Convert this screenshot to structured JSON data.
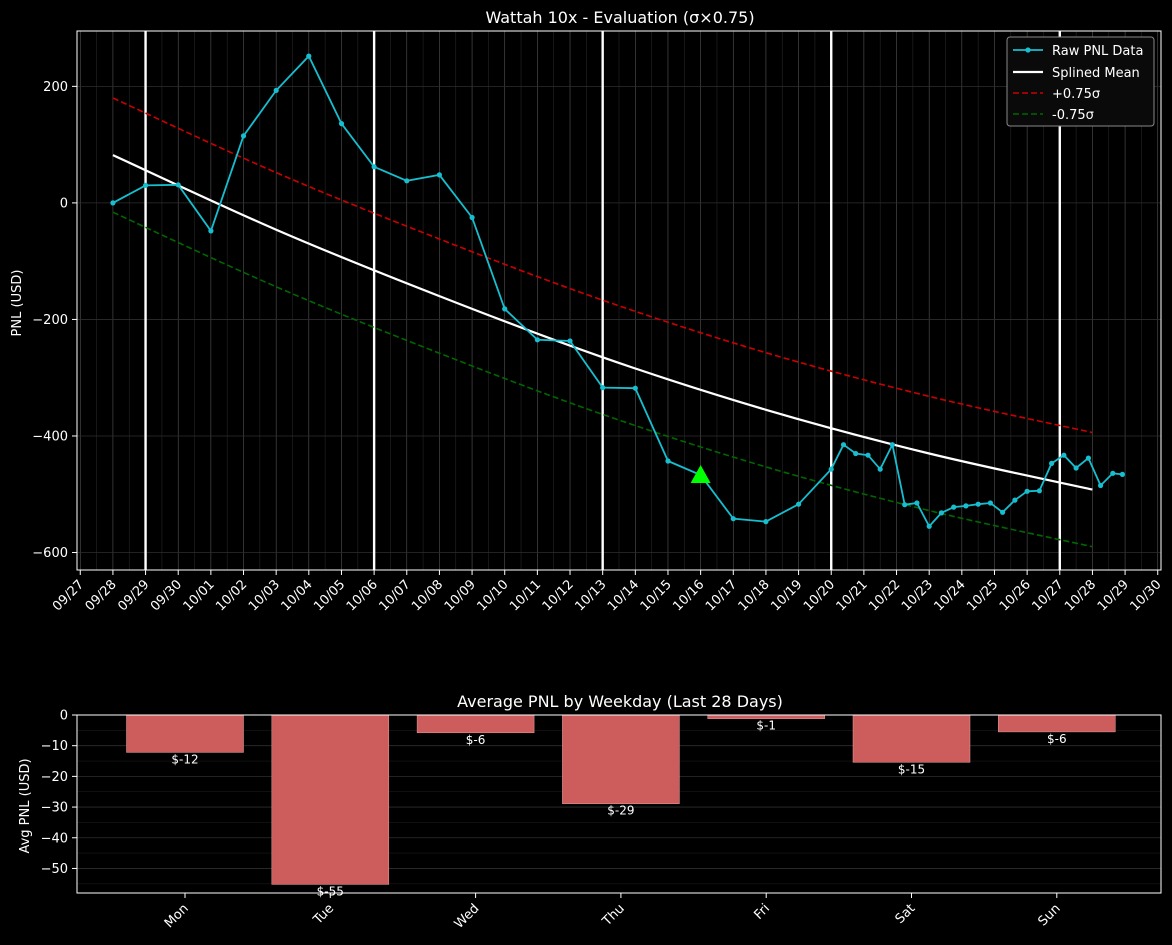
{
  "colors": {
    "background": "#000000",
    "raw": "#17becf",
    "mean": "#ffffff",
    "upper": "#cc0000",
    "lower": "#006600",
    "marker": "#00ff00",
    "bars": "#cd5c5c",
    "grid": "#2a2a2a"
  },
  "chart_data": [
    {
      "type": "line",
      "title": "Wattah 10x - Evaluation (σ×0.75)",
      "xlabel": "",
      "ylabel": "PNL (USD)",
      "xlim": [
        "2024-09-27",
        "2024-10-30"
      ],
      "ylim": [
        -630,
        295
      ],
      "x_tick_labels": [
        "09/27",
        "09/28",
        "09/29",
        "09/30",
        "10/01",
        "10/02",
        "10/03",
        "10/04",
        "10/05",
        "10/06",
        "10/07",
        "10/08",
        "10/09",
        "10/10",
        "10/11",
        "10/12",
        "10/13",
        "10/14",
        "10/15",
        "10/16",
        "10/17",
        "10/18",
        "10/19",
        "10/20",
        "10/21",
        "10/22",
        "10/23",
        "10/24",
        "10/25",
        "10/26",
        "10/27",
        "10/28",
        "10/29",
        "10/30"
      ],
      "y_tick_labels": [
        "200",
        "0",
        "−200",
        "−400",
        "−600"
      ],
      "y_ticks": [
        200,
        0,
        -200,
        -400,
        -600
      ],
      "week_lines": [
        "2024-09-29",
        "2024-10-06",
        "2024-10-13",
        "2024-10-20",
        "2024-10-27"
      ],
      "grid": true,
      "legend_position": "top-right",
      "legend": {
        "raw": "Raw PNL Data",
        "mean": "Splined Mean",
        "upper": "+0.75σ",
        "lower": "-0.75σ"
      },
      "series": [
        {
          "name": "Raw PNL Data",
          "style": "line-markers",
          "points": [
            [
              "2024-09-28T00:00",
              0
            ],
            [
              "2024-09-29T00:00",
              30
            ],
            [
              "2024-09-30T00:00",
              31
            ],
            [
              "2024-10-01T00:00",
              -48
            ],
            [
              "2024-10-02T00:00",
              115
            ],
            [
              "2024-10-03T00:00",
              193
            ],
            [
              "2024-10-04T00:00",
              252
            ],
            [
              "2024-10-05T00:00",
              136
            ],
            [
              "2024-10-06T00:00",
              62
            ],
            [
              "2024-10-07T00:00",
              38
            ],
            [
              "2024-10-08T00:00",
              48
            ],
            [
              "2024-10-09T00:00",
              -25
            ],
            [
              "2024-10-10T00:00",
              -182
            ],
            [
              "2024-10-11T00:00",
              -235
            ],
            [
              "2024-10-12T00:00",
              -237
            ],
            [
              "2024-10-13T00:00",
              -317
            ],
            [
              "2024-10-14T00:00",
              -318
            ],
            [
              "2024-10-15T00:00",
              -443
            ],
            [
              "2024-10-16T00:00",
              -467
            ],
            [
              "2024-10-17T00:00",
              -542
            ],
            [
              "2024-10-18T00:00",
              -547
            ],
            [
              "2024-10-19T00:00",
              -517
            ],
            [
              "2024-10-20T00:00",
              -457
            ],
            [
              "2024-10-20T09:00",
              -415
            ],
            [
              "2024-10-20T18:00",
              -430
            ],
            [
              "2024-10-21T03:00",
              -433
            ],
            [
              "2024-10-21T12:00",
              -457
            ],
            [
              "2024-10-21T21:00",
              -415
            ],
            [
              "2024-10-22T06:00",
              -518
            ],
            [
              "2024-10-22T15:00",
              -515
            ],
            [
              "2024-10-23T00:00",
              -555
            ],
            [
              "2024-10-23T09:00",
              -532
            ],
            [
              "2024-10-23T18:00",
              -522
            ],
            [
              "2024-10-24T03:00",
              -520
            ],
            [
              "2024-10-24T12:00",
              -517
            ],
            [
              "2024-10-24T21:00",
              -515
            ],
            [
              "2024-10-25T06:00",
              -531
            ],
            [
              "2024-10-25T15:00",
              -510
            ],
            [
              "2024-10-26T00:00",
              -495
            ],
            [
              "2024-10-26T09:00",
              -494
            ],
            [
              "2024-10-26T18:00",
              -447
            ],
            [
              "2024-10-27T03:00",
              -433
            ],
            [
              "2024-10-27T12:00",
              -455
            ],
            [
              "2024-10-27T21:00",
              -438
            ],
            [
              "2024-10-28T06:00",
              -485
            ],
            [
              "2024-10-28T15:00",
              -464
            ],
            [
              "2024-10-28T22:00",
              -466
            ]
          ]
        },
        {
          "name": "Splined Mean",
          "style": "solid",
          "points": [
            [
              "2024-09-28",
              82
            ],
            [
              "2024-10-03",
              -46
            ],
            [
              "2024-10-08",
              -160
            ],
            [
              "2024-10-13",
              -265
            ],
            [
              "2024-10-18",
              -355
            ],
            [
              "2024-10-23",
              -430
            ],
            [
              "2024-10-28",
              -492
            ]
          ]
        },
        {
          "name": "+0.75σ",
          "style": "dashed",
          "points": [
            [
              "2024-09-28",
              180
            ],
            [
              "2024-10-03",
              52
            ],
            [
              "2024-10-08",
              -62
            ],
            [
              "2024-10-13",
              -167
            ],
            [
              "2024-10-18",
              -257
            ],
            [
              "2024-10-23",
              -332
            ],
            [
              "2024-10-28",
              -394
            ]
          ]
        },
        {
          "name": "-0.75σ",
          "style": "dashed",
          "points": [
            [
              "2024-09-28",
              -16
            ],
            [
              "2024-10-03",
              -144
            ],
            [
              "2024-10-08",
              -258
            ],
            [
              "2024-10-13",
              -363
            ],
            [
              "2024-10-18",
              -453
            ],
            [
              "2024-10-23",
              -528
            ],
            [
              "2024-10-28",
              -590
            ]
          ]
        }
      ],
      "marker": {
        "shape": "triangle",
        "x": "2024-10-16T00:00",
        "y": -467
      }
    },
    {
      "type": "bar",
      "title": "Average PNL by Weekday (Last 28 Days)",
      "xlabel": "",
      "ylabel": "Avg PNL (USD)",
      "ylim": [
        -58,
        0
      ],
      "categories": [
        "Mon",
        "Tue",
        "Wed",
        "Thu",
        "Fri",
        "Sat",
        "Sun"
      ],
      "values": [
        -12.2,
        -55.2,
        -5.8,
        -28.9,
        -1.2,
        -15.4,
        -5.5
      ],
      "data_labels": [
        "$-12",
        "$-55",
        "$-6",
        "$-29",
        "$-1",
        "$-15",
        "$-6"
      ],
      "y_ticks": [
        0,
        -10,
        -20,
        -30,
        -40,
        -50
      ],
      "y_tick_labels": [
        "0",
        "−10",
        "−20",
        "−30",
        "−40",
        "−50"
      ],
      "grid": true
    }
  ]
}
